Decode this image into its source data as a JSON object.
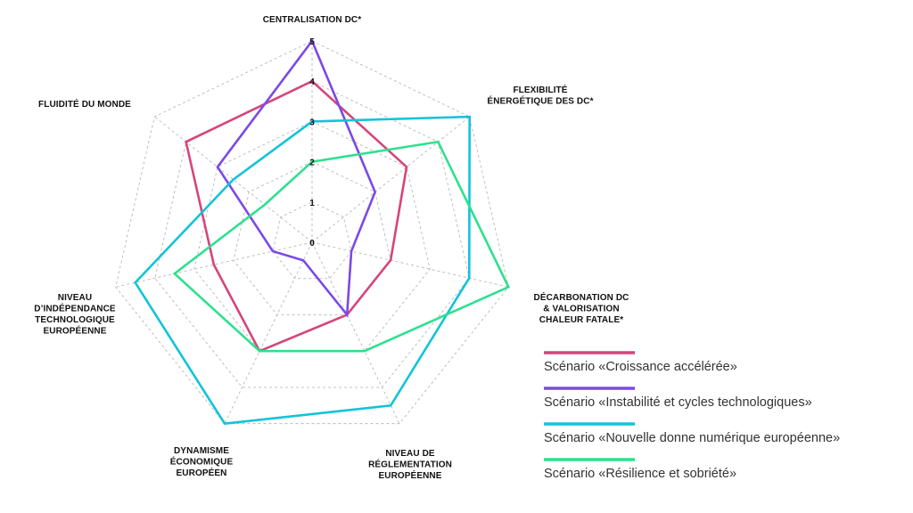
{
  "chart_data": {
    "type": "radar",
    "axes": [
      [
        "CENTRALISATION DC*"
      ],
      [
        "FLEXIBILITÉ",
        "ÉNERGÉTIQUE DES DC*"
      ],
      [
        "DÉCARBONATION DC",
        "& VALORISATION",
        "CHALEUR FATALE*"
      ],
      [
        "NIVEAU DE",
        "RÉGLEMENTATION",
        "EUROPÉENNE"
      ],
      [
        "DYNAMISME",
        "ÉCONOMIQUE",
        "EUROPÉEN"
      ],
      [
        "NIVEAU",
        "D’INDÉPENDANCE",
        "TECHNOLOGIQUE",
        "EUROPÉENNE"
      ],
      [
        "FLUIDITÉ DU MONDE"
      ]
    ],
    "ticks": [
      "0",
      "1",
      "2",
      "3",
      "4",
      "5"
    ],
    "rmin": 0,
    "rmax": 5,
    "grid": true,
    "legend_position": "bottom-right",
    "series": [
      {
        "name": "Scénario «Croissance accélérée»",
        "color": "#d6457c",
        "values": [
          4,
          3,
          2,
          2,
          3,
          2.5,
          4
        ]
      },
      {
        "name": "Scénario «Instabilité et cycles technologiques»",
        "color": "#7b49e6",
        "values": [
          5,
          2,
          1,
          2,
          0.5,
          1,
          3
        ]
      },
      {
        "name": "Scénario «Nouvelle donne numérique européenne»",
        "color": "#12c3da",
        "values": [
          3,
          5,
          4,
          4.5,
          5,
          4.5,
          2.5
        ]
      },
      {
        "name": "Scénario «Résilience et sobriété»",
        "color": "#2ee08f",
        "values": [
          2,
          4,
          5,
          3,
          3,
          3.5,
          1.5
        ]
      }
    ]
  }
}
